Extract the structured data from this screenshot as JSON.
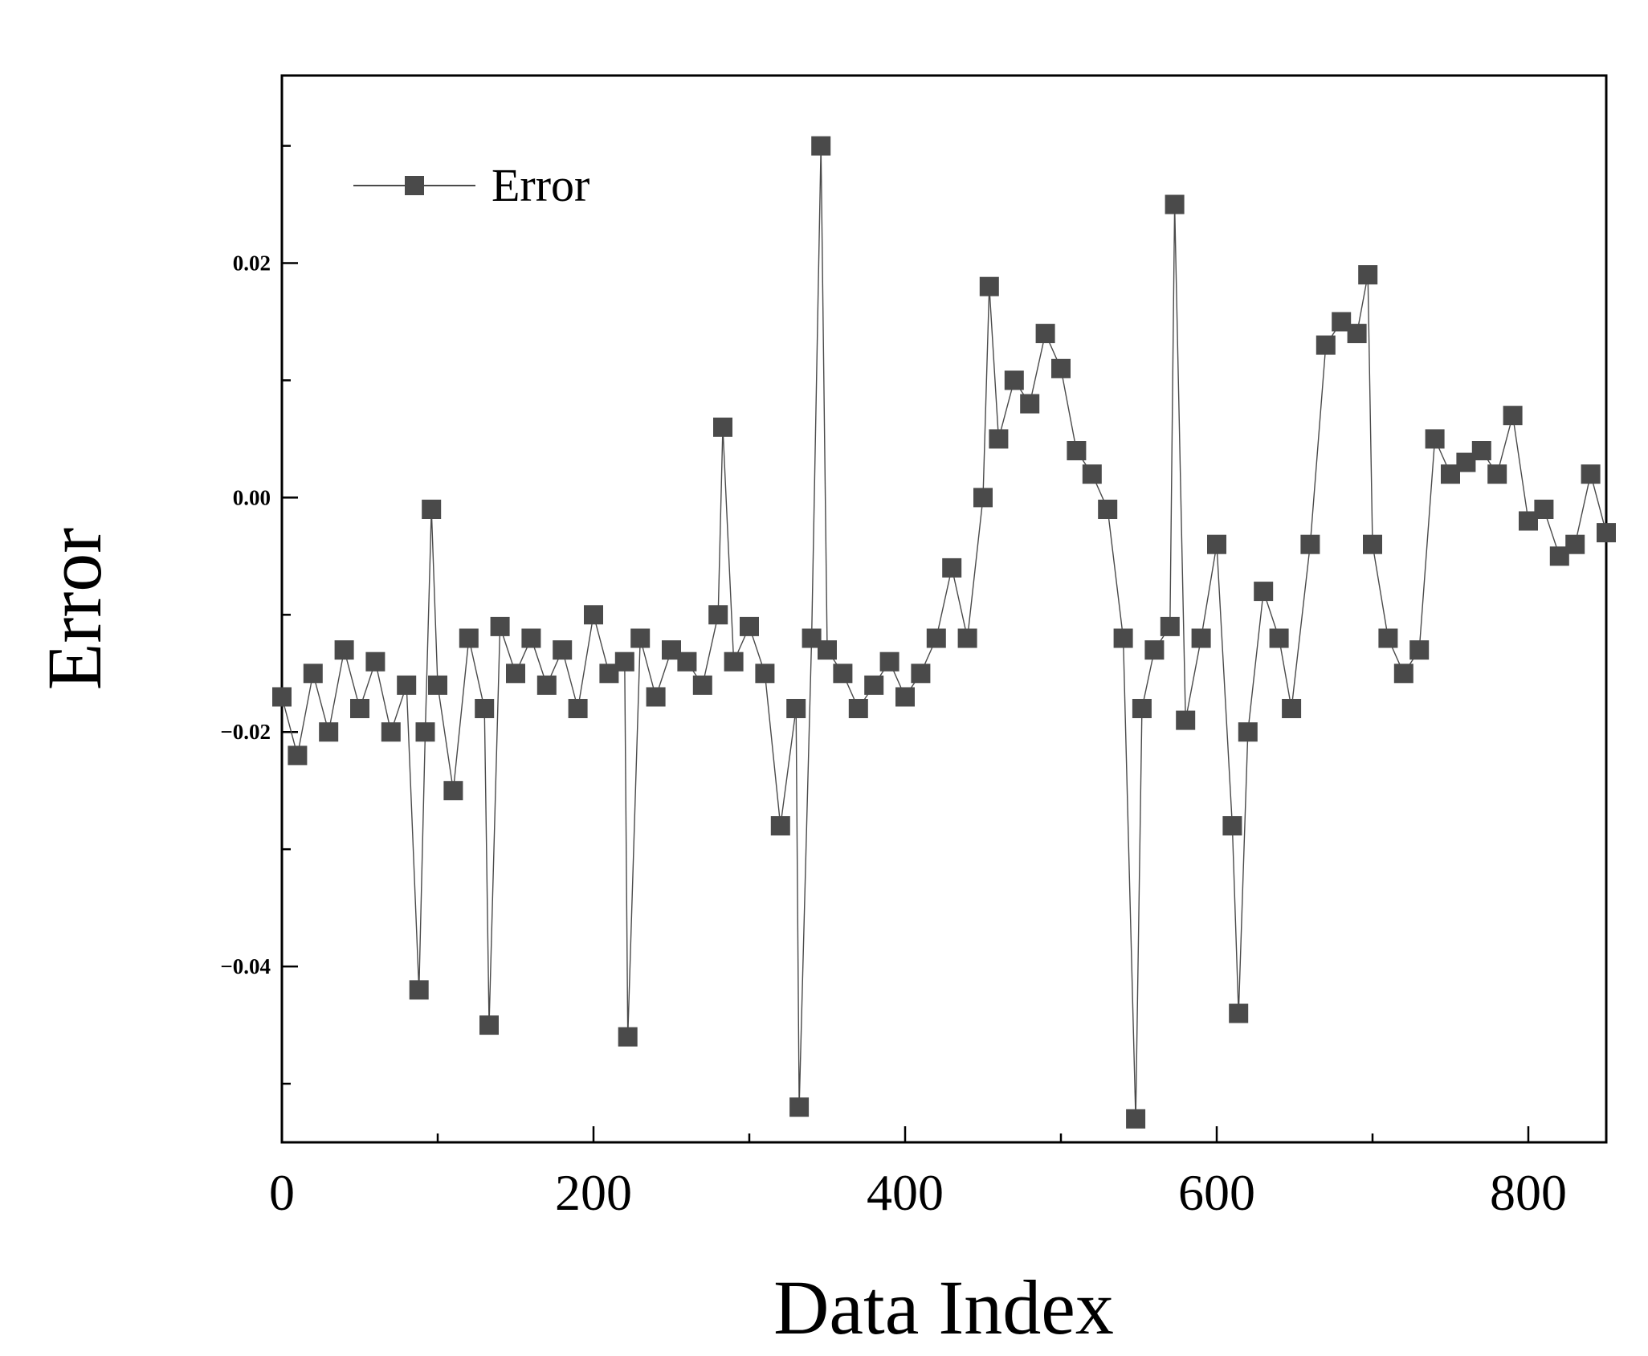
{
  "chart_data": {
    "type": "line",
    "title": "",
    "xlabel": "Data Index",
    "ylabel": "Error",
    "xlim": [
      0,
      850
    ],
    "ylim": [
      -0.055,
      0.036
    ],
    "x_ticks": [
      0,
      200,
      400,
      600,
      800
    ],
    "x_tick_labels": [
      "0",
      "200",
      "400",
      "600",
      "800"
    ],
    "x_minor_ticks": [
      100,
      300,
      500,
      700
    ],
    "y_ticks": [
      -0.04,
      -0.02,
      0.0,
      0.02
    ],
    "y_tick_labels": [
      "−0.04",
      "−0.02",
      "0.00",
      "0.02"
    ],
    "y_minor_ticks": [
      -0.05,
      -0.03,
      -0.01,
      0.01,
      0.03
    ],
    "grid": false,
    "legend_position": "top-left",
    "marker": "square",
    "color": "#4a4a4a",
    "series": [
      {
        "name": "Error",
        "x": [
          0,
          10,
          20,
          30,
          40,
          50,
          60,
          70,
          80,
          88,
          92,
          96,
          100,
          110,
          120,
          130,
          133,
          140,
          150,
          160,
          170,
          180,
          190,
          200,
          210,
          220,
          222,
          230,
          240,
          250,
          260,
          270,
          280,
          283,
          290,
          300,
          310,
          320,
          330,
          332,
          340,
          346,
          350,
          360,
          370,
          380,
          390,
          400,
          410,
          420,
          430,
          440,
          450,
          454,
          460,
          470,
          480,
          490,
          500,
          510,
          520,
          530,
          540,
          548,
          552,
          560,
          570,
          573,
          580,
          590,
          600,
          610,
          614,
          620,
          630,
          640,
          648,
          660,
          670,
          680,
          690,
          697,
          700,
          710,
          720,
          730,
          740,
          750,
          760,
          770,
          780,
          790,
          800,
          810,
          820,
          830,
          840,
          850
        ],
        "y": [
          -0.017,
          -0.022,
          -0.015,
          -0.02,
          -0.013,
          -0.018,
          -0.014,
          -0.02,
          -0.016,
          -0.042,
          -0.02,
          -0.001,
          -0.016,
          -0.025,
          -0.012,
          -0.018,
          -0.045,
          -0.011,
          -0.015,
          -0.012,
          -0.016,
          -0.013,
          -0.018,
          -0.01,
          -0.015,
          -0.014,
          -0.046,
          -0.012,
          -0.017,
          -0.013,
          -0.014,
          -0.016,
          -0.01,
          0.006,
          -0.014,
          -0.011,
          -0.015,
          -0.028,
          -0.018,
          -0.052,
          -0.012,
          0.03,
          -0.013,
          -0.015,
          -0.018,
          -0.016,
          -0.014,
          -0.017,
          -0.015,
          -0.012,
          -0.006,
          -0.012,
          0.0,
          0.018,
          0.005,
          0.01,
          0.008,
          0.014,
          0.011,
          0.004,
          0.002,
          -0.001,
          -0.012,
          -0.053,
          -0.018,
          -0.013,
          -0.011,
          0.025,
          -0.019,
          -0.012,
          -0.004,
          -0.028,
          -0.044,
          -0.02,
          -0.008,
          -0.012,
          -0.018,
          -0.004,
          0.013,
          0.015,
          0.014,
          0.019,
          -0.004,
          -0.012,
          -0.015,
          -0.013,
          0.005,
          0.002,
          0.003,
          0.004,
          0.002,
          0.007,
          -0.002,
          -0.001,
          -0.005,
          -0.004,
          0.002,
          -0.003
        ]
      }
    ]
  }
}
